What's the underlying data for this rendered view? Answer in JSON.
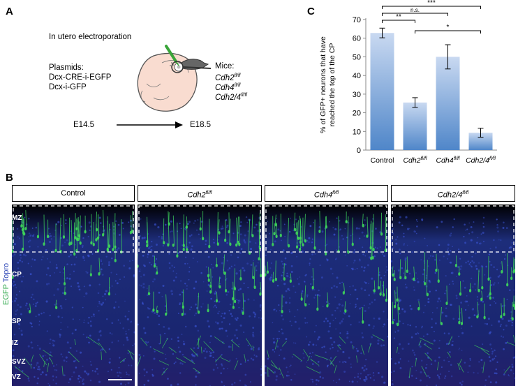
{
  "panelA": {
    "letter": "A",
    "title": "In utero electroporation",
    "plasmids_label": "Plasmids:",
    "plasmids": [
      "Dcx-CRE-i-EGFP",
      "Dcx-i-GFP"
    ],
    "mice_label": "Mice:",
    "mice": [
      {
        "gene": "Cdh2",
        "sup": "fl/fl"
      },
      {
        "gene": "Cdh4",
        "sup": "fl/fl"
      },
      {
        "gene": "Cdh2/4",
        "sup": "fl/fl"
      }
    ],
    "start": "E14.5",
    "end": "E18.5",
    "colors": {
      "embryo_fill": "#f9dcd0",
      "embryo_stroke": "#555555",
      "pipette": "#3aa53a"
    }
  },
  "panelC": {
    "letter": "C"
  },
  "chart_data": {
    "type": "bar",
    "categories": [
      "Control",
      "Cdh2fl/fl",
      "Cdh4fl/fl",
      "Cdh2/4fl/fl"
    ],
    "tick_labels": [
      {
        "main": "Control",
        "sup": ""
      },
      {
        "main": "Cdh2",
        "sup": "fl/fl"
      },
      {
        "main": "Cdh4",
        "sup": "fl/fl"
      },
      {
        "main": "Cdh2/4",
        "sup": "fl/fl"
      }
    ],
    "values": [
      62.8,
      25.5,
      50.0,
      9.3
    ],
    "errors": [
      2.6,
      2.6,
      6.5,
      2.4
    ],
    "ylabel_lines": [
      "% of GFP+ neurons that have",
      "reached the top of the CP"
    ],
    "ylim": [
      0,
      70
    ],
    "yticks": [
      0,
      10,
      20,
      30,
      40,
      50,
      60,
      70
    ],
    "significance": [
      {
        "from": 0,
        "to": 3,
        "label": "***"
      },
      {
        "from": 0,
        "to": 2,
        "label": "n.s."
      },
      {
        "from": 0,
        "to": 1,
        "label": "**"
      },
      {
        "from": 1,
        "to": 3,
        "label": "*"
      }
    ],
    "bar_color_top": "#c9d9f1",
    "bar_color_bottom": "#4f86c9"
  },
  "panelB": {
    "letter": "B",
    "conditions": [
      {
        "main": "Control",
        "sup": ""
      },
      {
        "main": "Cdh2",
        "sup": "fl/fl"
      },
      {
        "main": "Cdh4",
        "sup": "fl/fl"
      },
      {
        "main": "Cdh2/4",
        "sup": "fl/fl"
      }
    ],
    "stain_egfp": "EGFP",
    "stain_topro": "Topro",
    "layers": [
      "MZ",
      "CP",
      "SP",
      "IZ",
      "SVZ",
      "VZ"
    ],
    "colors": {
      "egfp": "#3fd85a",
      "topro": "#3b55d6",
      "tissue": "#1d2d7a",
      "background": "#000000"
    }
  }
}
